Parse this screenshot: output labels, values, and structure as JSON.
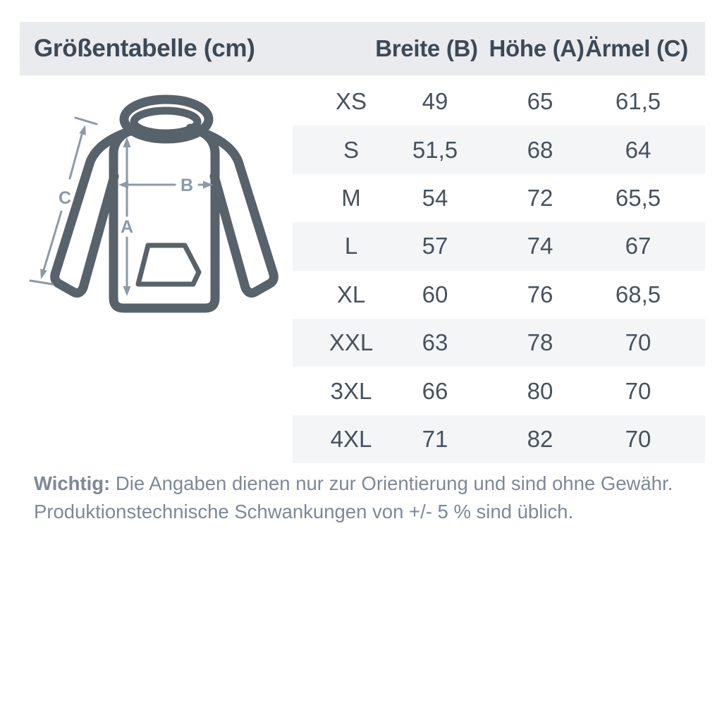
{
  "title": "Größentabelle (cm)",
  "columns": [
    "Breite (B)",
    "Höhe (A)",
    "Ärmel (C)"
  ],
  "rows": [
    {
      "size": "XS",
      "b": "49",
      "h": "65",
      "c": "61,5"
    },
    {
      "size": "S",
      "b": "51,5",
      "h": "68",
      "c": "64"
    },
    {
      "size": "M",
      "b": "54",
      "h": "72",
      "c": "65,5"
    },
    {
      "size": "L",
      "b": "57",
      "h": "74",
      "c": "67"
    },
    {
      "size": "XL",
      "b": "60",
      "h": "76",
      "c": "68,5"
    },
    {
      "size": "XXL",
      "b": "63",
      "h": "78",
      "c": "70"
    },
    {
      "size": "3XL",
      "b": "66",
      "h": "80",
      "c": "70"
    },
    {
      "size": "4XL",
      "b": "71",
      "h": "82",
      "c": "70"
    }
  ],
  "diagram_labels": {
    "a": "A",
    "b": "B",
    "c": "C"
  },
  "note": {
    "bold": "Wichtig:",
    "line1": "Die Angaben dienen nur zur Orientierung und sind ohne Gewähr.",
    "line2": "Produktionstechnische Schwankungen von +/- 5 % sind üblich."
  },
  "colors": {
    "header_bar_bg": "#e9ebee",
    "stripe_bg": "#f3f5f7",
    "heading_text": "#3e4956",
    "cell_text": "#47525f",
    "note_text": "#7d8898",
    "hoodie_outline": "#57626b",
    "measure_arrow": "#8c99a9"
  }
}
